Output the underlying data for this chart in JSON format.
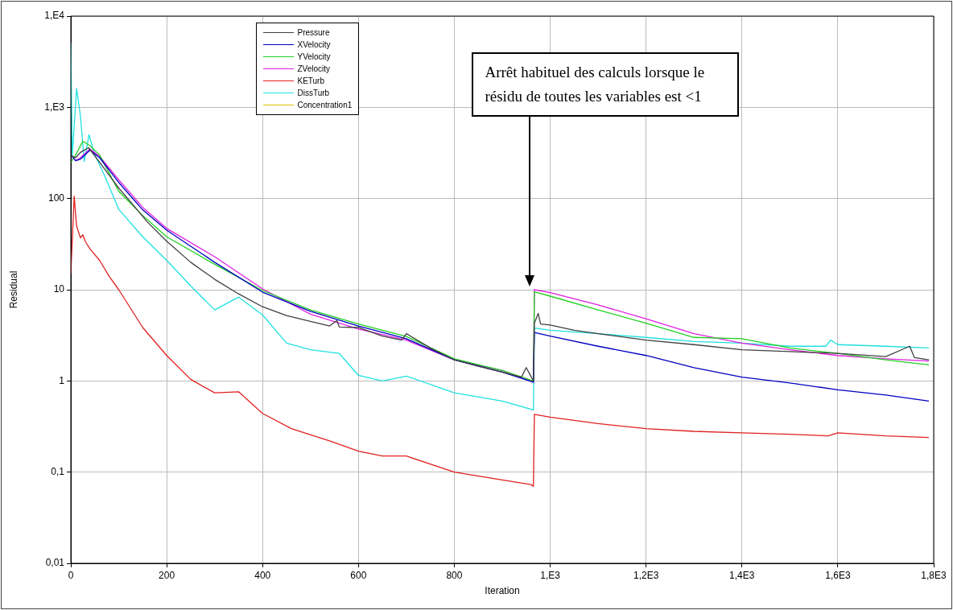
{
  "chart_data": {
    "type": "line",
    "xlabel": "Iteration",
    "ylabel": "Residual",
    "xlim": [
      0,
      1800
    ],
    "xticks": [
      0,
      200,
      400,
      600,
      800,
      {
        "value": 1000,
        "label": "1,E3"
      },
      {
        "value": 1200,
        "label": "1,2E3"
      },
      {
        "value": 1400,
        "label": "1,4E3"
      },
      {
        "value": 1600,
        "label": "1,6E3"
      },
      {
        "value": 1800,
        "label": "1,8E3"
      }
    ],
    "ylim": [
      0.01,
      10000
    ],
    "yticks": [
      {
        "value": 0.01,
        "label": "0,01"
      },
      {
        "value": 0.1,
        "label": "0,1"
      },
      1,
      10,
      100,
      {
        "value": 1000,
        "label": "1,E3"
      },
      {
        "value": 10000,
        "label": "1,E4"
      }
    ],
    "log": "y",
    "grid": true,
    "legend": "top left",
    "marker": "none",
    "line_style": "solid",
    "annotations": [
      "Arrêt habituel des calculs lorsque le résidu de toutes les variables est <1"
    ],
    "series": [
      {
        "name": "Pressure",
        "color": "#404040",
        "x": [
          0,
          10,
          20,
          37,
          60,
          80,
          100,
          130,
          160,
          200,
          250,
          300,
          350,
          400,
          450,
          500,
          540,
          555,
          560,
          600,
          650,
          690,
          700,
          750,
          800,
          850,
          900,
          940,
          950,
          965,
          967,
          975,
          980,
          1000,
          1050,
          1100,
          1200,
          1300,
          1400,
          1500,
          1600,
          1700,
          1750,
          1760,
          1790
        ],
        "values": [
          295,
          280,
          320,
          361,
          250,
          180,
          130,
          85,
          55,
          34,
          20,
          13,
          9,
          6.5,
          5.2,
          4.5,
          4,
          4.6,
          3.9,
          3.85,
          3.1,
          2.8,
          3.3,
          2.3,
          1.7,
          1.45,
          1.25,
          1.1,
          1.4,
          1.0,
          4.3,
          5.5,
          4.2,
          4.1,
          3.6,
          3.3,
          2.8,
          2.5,
          2.2,
          2.1,
          2.0,
          1.85,
          2.4,
          1.8,
          1.7
        ]
      },
      {
        "name": "XVelocity",
        "color": "#0000c0",
        "x": [
          0,
          10,
          20,
          40,
          60,
          100,
          150,
          200,
          300,
          400,
          500,
          600,
          700,
          800,
          900,
          965,
          967,
          1000,
          1100,
          1200,
          1300,
          1400,
          1500,
          1600,
          1700,
          1790
        ],
        "values": [
          300,
          260,
          270,
          340,
          280,
          150,
          75,
          45,
          20,
          9.4,
          5.8,
          4.0,
          2.9,
          1.7,
          1.25,
          0.97,
          3.4,
          3.1,
          2.4,
          1.9,
          1.4,
          1.1,
          0.95,
          0.8,
          0.7,
          0.6
        ]
      },
      {
        "name": "YVelocity",
        "color": "#20d020",
        "x": [
          0,
          10,
          25,
          40,
          60,
          100,
          150,
          200,
          300,
          400,
          500,
          600,
          700,
          800,
          900,
          965,
          967,
          1000,
          1100,
          1200,
          1300,
          1400,
          1500,
          1600,
          1700,
          1790
        ],
        "values": [
          250,
          300,
          425,
          380,
          300,
          120,
          65,
          38,
          19,
          9.8,
          6,
          4.2,
          3.07,
          1.75,
          1.3,
          1.0,
          9.5,
          8.5,
          6,
          4.3,
          3,
          2.9,
          2.3,
          2,
          1.7,
          1.5
        ]
      },
      {
        "name": "ZVelocity",
        "color": "#e020e0",
        "x": [
          0,
          10,
          20,
          40,
          60,
          100,
          150,
          200,
          300,
          400,
          500,
          600,
          700,
          800,
          900,
          965,
          967,
          1000,
          1100,
          1200,
          1300,
          1400,
          1500,
          1600,
          1700,
          1790
        ],
        "values": [
          300,
          260,
          280,
          350,
          290,
          160,
          80,
          47,
          23,
          10.2,
          5.4,
          3.7,
          2.8,
          1.7,
          1.3,
          0.97,
          10,
          9.3,
          6.8,
          4.8,
          3.3,
          2.6,
          2.2,
          1.9,
          1.75,
          1.65
        ]
      },
      {
        "name": "KETurb",
        "color": "#e02020",
        "x": [
          0,
          7,
          12,
          20,
          25,
          30,
          40,
          60,
          80,
          100,
          150,
          200,
          250,
          300,
          350,
          400,
          460,
          540,
          600,
          650,
          700,
          800,
          900,
          960,
          965,
          967,
          1000,
          1100,
          1200,
          1300,
          1400,
          1500,
          1580,
          1600,
          1700,
          1790
        ],
        "values": [
          15,
          106,
          50,
          37,
          40,
          34,
          28,
          21,
          14,
          10,
          3.85,
          1.9,
          1.04,
          0.74,
          0.76,
          0.44,
          0.3,
          0.22,
          0.17,
          0.15,
          0.15,
          0.1,
          0.082,
          0.073,
          0.07,
          0.43,
          0.4,
          0.34,
          0.3,
          0.28,
          0.27,
          0.26,
          0.25,
          0.27,
          0.25,
          0.24
        ]
      },
      {
        "name": "DissTurb",
        "color": "#20e0e0",
        "x": [
          0,
          3,
          12,
          20,
          28,
          38,
          50,
          70,
          100,
          150,
          200,
          250,
          300,
          350,
          400,
          450,
          500,
          560,
          600,
          650,
          700,
          800,
          900,
          965,
          967,
          1000,
          1100,
          1200,
          1300,
          1400,
          1500,
          1575,
          1585,
          1600,
          1700,
          1790
        ],
        "values": [
          5100,
          295,
          1600,
          810,
          255,
          500,
          300,
          180,
          76,
          38,
          21,
          11,
          6.0,
          8.3,
          5.3,
          2.6,
          2.2,
          2.0,
          1.15,
          1.0,
          1.13,
          0.74,
          0.6,
          0.48,
          3.8,
          3.6,
          3.3,
          3.0,
          2.7,
          2.6,
          2.4,
          2.4,
          2.8,
          2.5,
          2.4,
          2.3
        ]
      },
      {
        "name": "Concentration1",
        "color": "#e0c000"
      }
    ]
  }
}
